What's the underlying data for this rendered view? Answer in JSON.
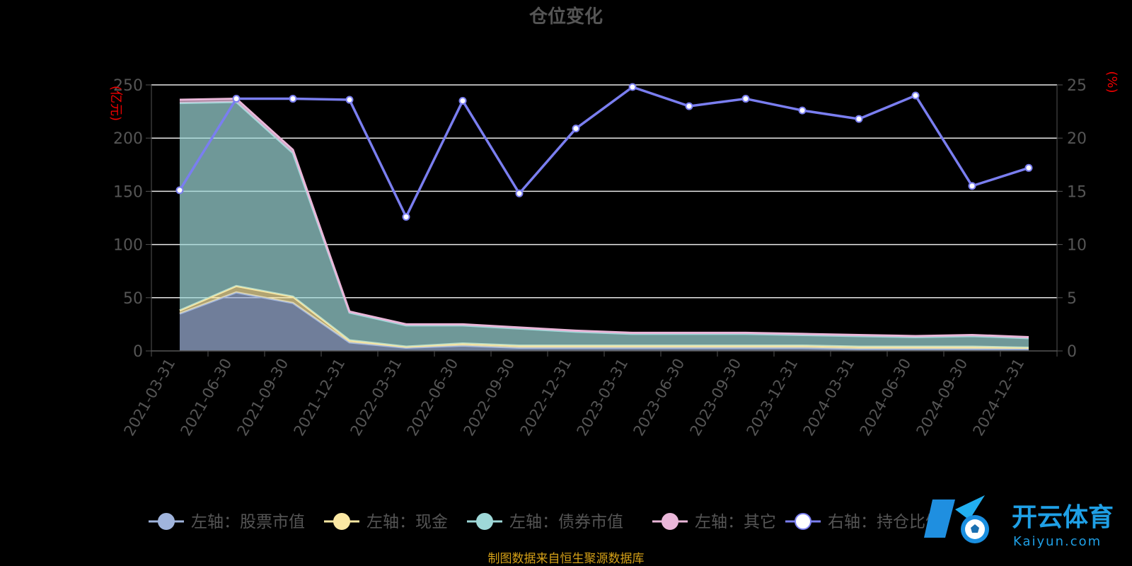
{
  "chart_data": {
    "type": "area",
    "title": "仓位变化",
    "left_axis_unit": "(亿元)",
    "right_axis_unit": "(%)",
    "left_ylim": [
      0,
      250
    ],
    "left_ticks": [
      "0",
      "50",
      "100",
      "150",
      "200",
      "250"
    ],
    "right_ylim": [
      0,
      25
    ],
    "right_ticks": [
      "0",
      "5",
      "10",
      "15",
      "20",
      "25"
    ],
    "categories": [
      "2021-03-31",
      "2021-06-30",
      "2021-09-30",
      "2021-12-31",
      "2022-03-31",
      "2022-06-30",
      "2022-09-30",
      "2022-12-31",
      "2023-03-31",
      "2023-06-30",
      "2023-09-30",
      "2023-12-31",
      "2024-03-31",
      "2024-06-30",
      "2024-09-30",
      "2024-12-31"
    ],
    "stacked_series": [
      {
        "name": "左轴：股票市值",
        "color": "#a0b4dc",
        "values": [
          35,
          55,
          45,
          8,
          3,
          5,
          3,
          3,
          3,
          3,
          3,
          3,
          2,
          2,
          2,
          2
        ]
      },
      {
        "name": "左轴：现金",
        "color": "#fbe8a3",
        "values": [
          3,
          6,
          6,
          2,
          1,
          2,
          2,
          2,
          2,
          2,
          2,
          2,
          2,
          2,
          2,
          1
        ]
      },
      {
        "name": "左轴：债券市值",
        "color": "#9ed8d8",
        "values": [
          195,
          173,
          135,
          26,
          20,
          17,
          16,
          13,
          11,
          11,
          11,
          10,
          10,
          9,
          10,
          9
        ]
      },
      {
        "name": "左轴：其它",
        "color": "#eab7d9",
        "values": [
          3,
          3,
          3,
          1,
          1,
          1,
          1,
          1,
          1,
          1,
          1,
          1,
          1,
          1,
          1,
          1
        ]
      }
    ],
    "line_series": [
      {
        "name": "右轴：持仓比例",
        "axis": "right",
        "color": "#7a7ef0",
        "values": [
          15.1,
          23.7,
          23.7,
          23.6,
          12.6,
          23.5,
          14.8,
          20.9,
          24.8,
          23.0,
          23.7,
          22.6,
          21.8,
          24.0,
          15.5,
          17.2
        ]
      }
    ],
    "legend_position": "bottom",
    "grid": true
  },
  "source_text": "制图数据来自恒生聚源数据库",
  "watermark": {
    "cn": "开云体育",
    "en": "Kaiyun.com",
    "icon": "football-logo-icon"
  }
}
